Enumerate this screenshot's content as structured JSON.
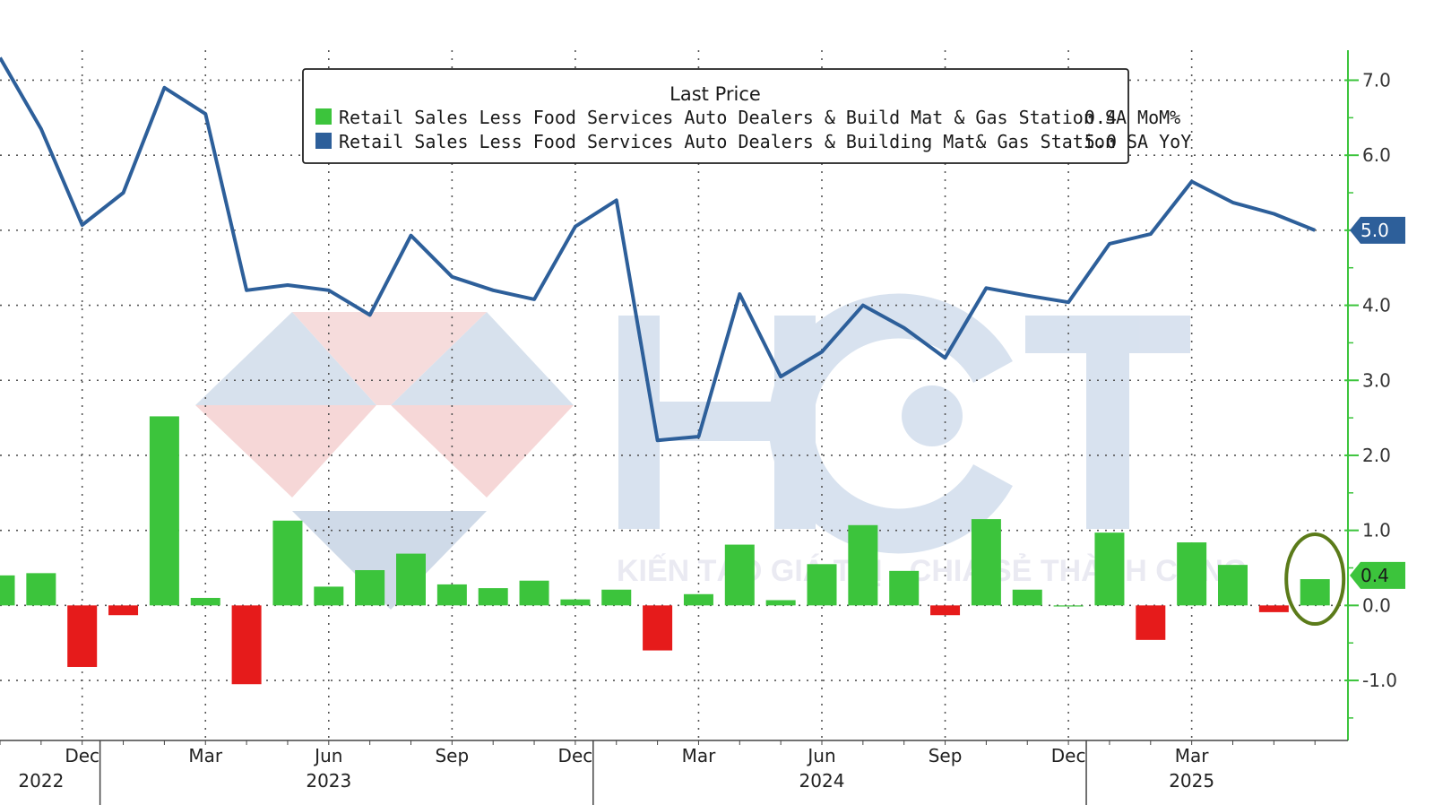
{
  "chart_data": {
    "type": "bar+line",
    "legend": {
      "title": "Last Price",
      "entries": [
        {
          "label": "Retail Sales Less Food Services Auto Dealers & Build Mat & Gas Station SA MoM%",
          "last": "0.4",
          "color": "#3cc43c"
        },
        {
          "label": "Retail Sales Less Food Services Auto Dealers & Building Mat& Gas Station SA YoY",
          "last": "5.0",
          "color": "#2d5f9a"
        }
      ],
      "placement": "top-center"
    },
    "y_axis": {
      "side": "right",
      "ylim": [
        -1.8,
        7.4
      ],
      "ticks": [
        "7.0",
        "6.0",
        "5.0",
        "4.0",
        "3.0",
        "2.0",
        "1.0",
        "0.0",
        "-1.0"
      ],
      "tick_values": [
        7,
        6,
        5,
        4,
        3,
        2,
        1,
        0,
        -1
      ],
      "last_value_tags": [
        {
          "text": "5.0",
          "value": 5.0,
          "color": "#2d5f9a"
        },
        {
          "text": "0.4",
          "value": 0.4,
          "color": "#3cc43c"
        }
      ]
    },
    "x_axis": {
      "month_labels": [
        {
          "text": "Dec",
          "index": 2
        },
        {
          "text": "Mar",
          "index": 5
        },
        {
          "text": "Jun",
          "index": 8
        },
        {
          "text": "Sep",
          "index": 11
        },
        {
          "text": "Dec",
          "index": 14
        },
        {
          "text": "Mar",
          "index": 17
        },
        {
          "text": "Jun",
          "index": 20
        },
        {
          "text": "Sep",
          "index": 23
        },
        {
          "text": "Dec",
          "index": 26
        },
        {
          "text": "Mar",
          "index": 29
        }
      ],
      "year_labels": [
        {
          "text": "2022",
          "index": 1
        },
        {
          "text": "2023",
          "index": 8
        },
        {
          "text": "2024",
          "index": 20
        },
        {
          "text": "2025",
          "index": 29
        }
      ],
      "grid_indices": [
        2,
        5,
        8,
        11,
        14,
        17,
        20,
        23,
        26,
        29
      ],
      "year_separators": [
        2.5,
        14.5,
        26.5
      ]
    },
    "series": [
      {
        "name": "Retail Sales Less Food Services Auto Dealers & Build Mat & Gas Station SA MoM%",
        "kind": "bar",
        "positive_color": "#3cc43c",
        "negative_color": "#e61b1b",
        "values": [
          0.4,
          0.43,
          -0.82,
          -0.13,
          2.52,
          0.1,
          -1.05,
          1.13,
          0.25,
          0.47,
          0.69,
          0.28,
          0.23,
          0.33,
          0.08,
          0.21,
          -0.6,
          0.15,
          0.81,
          0.07,
          0.55,
          1.07,
          0.46,
          -0.13,
          1.15,
          0.21,
          0.0,
          0.97,
          -0.46,
          0.84,
          0.54,
          -0.09,
          0.35
        ]
      },
      {
        "name": "Retail Sales Less Food Services Auto Dealers & Building Mat& Gas Station SA YoY",
        "kind": "line",
        "color": "#2d5f9a",
        "values": [
          7.3,
          6.35,
          5.07,
          5.5,
          6.9,
          6.55,
          4.2,
          4.27,
          4.2,
          3.87,
          4.93,
          4.38,
          4.2,
          4.08,
          5.05,
          5.4,
          2.2,
          2.25,
          4.15,
          3.05,
          3.38,
          4.0,
          3.7,
          3.3,
          4.23,
          4.13,
          4.04,
          4.82,
          4.95,
          5.65,
          5.37,
          5.22,
          5.0
        ]
      }
    ],
    "highlight": {
      "index": 32,
      "shape": "ellipse",
      "color": "#5b7b1a"
    }
  },
  "watermark": {
    "text": "KIẾN TẠO GIÁ TRỊ - CHIA SẺ THÀNH CÔNG",
    "logo_name": "HCT"
  }
}
